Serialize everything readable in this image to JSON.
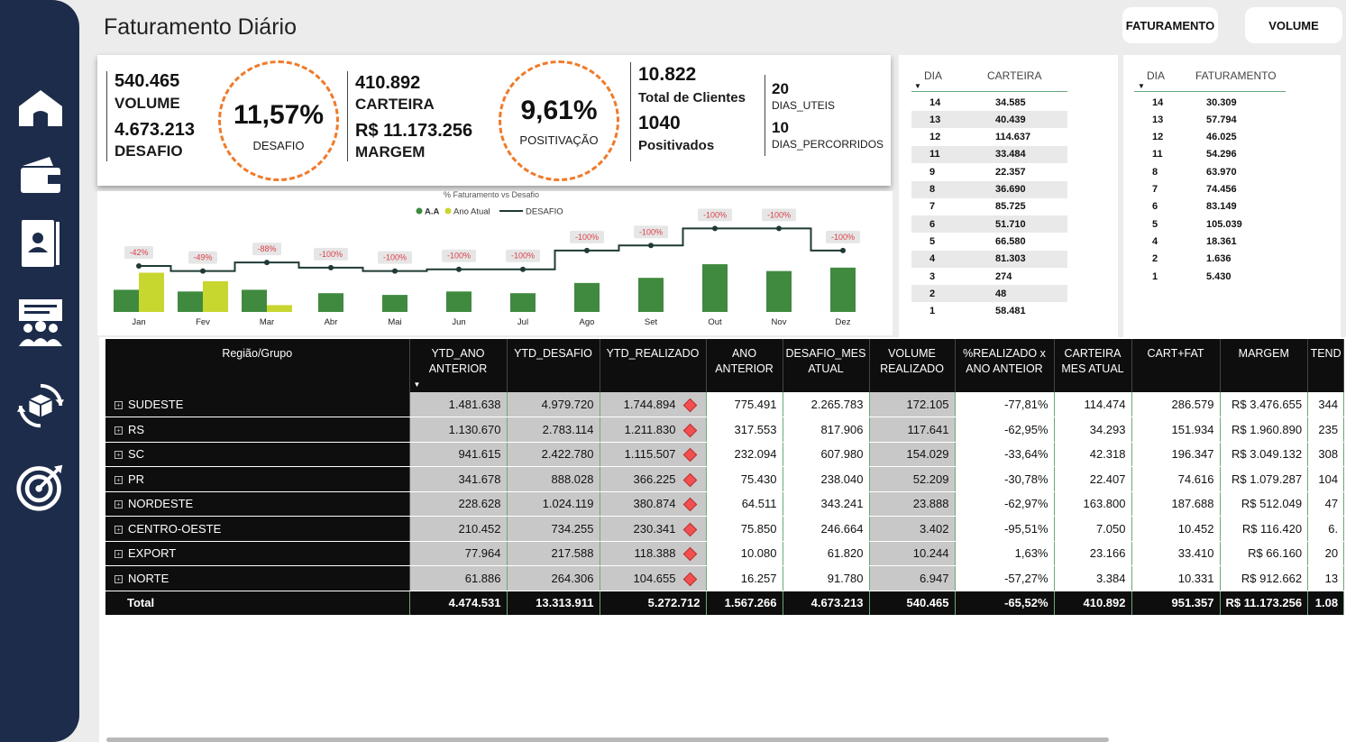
{
  "header": {
    "title": "Faturamento Diário",
    "btn_faturamento": "FATURAMENTO",
    "btn_volume": "VOLUME"
  },
  "sidebar": {
    "items": [
      "home-icon",
      "wallet-icon",
      "contacts-icon",
      "team-presentation-icon",
      "sync-box-icon",
      "target-icon"
    ]
  },
  "kpi": {
    "volume_value": "540.465",
    "volume_label": "VOLUME",
    "desafio_value": "4.673.213",
    "desafio_label": "DESAFIO",
    "desafio_pct": "11,57%",
    "desafio_pct_label": "DESAFIO",
    "carteira_value": "410.892",
    "carteira_label": "CARTEIRA",
    "margem_value": "R$ 11.173.256",
    "margem_label": "MARGEM",
    "positivacao_pct": "9,61%",
    "positivacao_label": "POSITIVAÇÃO",
    "clientes_value": "10.822",
    "clientes_label": "Total de Clientes",
    "positivados_value": "1040",
    "positivados_label": "Positivados",
    "dias_uteis_value": "20",
    "dias_uteis_label": "DIAS_UTEIS",
    "dias_percorridos_value": "10",
    "dias_percorridos_label": "DIAS_PERCORRIDOS"
  },
  "chart_data": {
    "type": "bar",
    "title": "% Faturamento vs Desafio",
    "legend": [
      "A.A",
      "Ano Atual",
      "DESAFIO"
    ],
    "legend_position": "top-center",
    "colors": {
      "aa": "#3f8a3f",
      "atual": "#c8d630",
      "desafio": "#1f3a35"
    },
    "categories": [
      "Jan",
      "Fev",
      "Mar",
      "Abr",
      "Mai",
      "Jun",
      "Jul",
      "Ago",
      "Set",
      "Out",
      "Nov",
      "Dez"
    ],
    "series": [
      {
        "name": "A.A",
        "values": [
          13,
          12,
          13,
          11,
          10,
          12,
          11,
          17,
          20,
          28,
          24,
          26
        ]
      },
      {
        "name": "Ano Atual",
        "values": [
          23,
          18,
          4,
          0,
          0,
          0,
          0,
          0,
          0,
          0,
          0,
          0
        ]
      },
      {
        "name": "DESAFIO",
        "values": [
          27,
          24,
          29,
          26,
          24,
          25,
          25,
          36,
          39,
          49,
          49,
          36
        ]
      }
    ],
    "data_labels": [
      "-42%",
      "-49%",
      "-88%",
      "-100%",
      "-100%",
      "-100%",
      "-100%",
      "-100%",
      "-100%",
      "-100%",
      "-100%",
      "-100%"
    ],
    "ylim": [
      0,
      55
    ],
    "grid": false
  },
  "carteira_table": {
    "col1": "DIA",
    "col2": "CARTEIRA",
    "rows": [
      [
        "14",
        "34.585"
      ],
      [
        "13",
        "40.439"
      ],
      [
        "12",
        "114.637"
      ],
      [
        "11",
        "33.484"
      ],
      [
        "9",
        "22.357"
      ],
      [
        "8",
        "36.690"
      ],
      [
        "7",
        "85.725"
      ],
      [
        "6",
        "51.710"
      ],
      [
        "5",
        "66.580"
      ],
      [
        "4",
        "81.303"
      ],
      [
        "3",
        "274"
      ],
      [
        "2",
        "48"
      ],
      [
        "1",
        "58.481"
      ]
    ]
  },
  "faturamento_table": {
    "col1": "DIA",
    "col2": "FATURAMENTO",
    "rows": [
      [
        "14",
        "30.309"
      ],
      [
        "13",
        "57.794"
      ],
      [
        "12",
        "46.025"
      ],
      [
        "11",
        "54.296"
      ],
      [
        "8",
        "63.970"
      ],
      [
        "7",
        "74.456"
      ],
      [
        "6",
        "83.149"
      ],
      [
        "5",
        "105.039"
      ],
      [
        "4",
        "18.361"
      ],
      [
        "2",
        "1.636"
      ],
      [
        "1",
        "5.430"
      ]
    ]
  },
  "grid": {
    "headers": [
      "Região/Grupo",
      "YTD_ANO ANTERIOR",
      "YTD_DESAFIO",
      "YTD_REALIZADO",
      "ANO ANTERIOR",
      "DESAFIO_MES ATUAL",
      "VOLUME REALIZADO",
      "%REALIZADO x ANO ANTEIOR",
      "CARTEIRA MES ATUAL",
      "CART+FAT",
      "MARGEM",
      "TEND"
    ],
    "rows": [
      [
        "SUDESTE",
        "1.481.638",
        "4.979.720",
        "1.744.894",
        "775.491",
        "2.265.783",
        "172.105",
        "-77,81%",
        "114.474",
        "286.579",
        "R$ 3.476.655",
        "344"
      ],
      [
        "RS",
        "1.130.670",
        "2.783.114",
        "1.211.830",
        "317.553",
        "817.906",
        "117.641",
        "-62,95%",
        "34.293",
        "151.934",
        "R$ 1.960.890",
        "235"
      ],
      [
        "SC",
        "941.615",
        "2.422.780",
        "1.115.507",
        "232.094",
        "607.980",
        "154.029",
        "-33,64%",
        "42.318",
        "196.347",
        "R$ 3.049.132",
        "308"
      ],
      [
        "PR",
        "341.678",
        "888.028",
        "366.225",
        "75.430",
        "238.040",
        "52.209",
        "-30,78%",
        "22.407",
        "74.616",
        "R$ 1.079.287",
        "104"
      ],
      [
        "NORDESTE",
        "228.628",
        "1.024.119",
        "380.874",
        "64.511",
        "343.241",
        "23.888",
        "-62,97%",
        "163.800",
        "187.688",
        "R$ 512.049",
        "47"
      ],
      [
        "CENTRO-OESTE",
        "210.452",
        "734.255",
        "230.341",
        "75.850",
        "246.664",
        "3.402",
        "-95,51%",
        "7.050",
        "10.452",
        "R$ 116.420",
        "6."
      ],
      [
        "EXPORT",
        "77.964",
        "217.588",
        "118.388",
        "10.080",
        "61.820",
        "10.244",
        "1,63%",
        "23.166",
        "33.410",
        "R$ 66.160",
        "20"
      ],
      [
        "NORTE",
        "61.886",
        "264.306",
        "104.655",
        "16.257",
        "91.780",
        "6.947",
        "-57,27%",
        "3.384",
        "10.331",
        "R$ 912.662",
        "13"
      ]
    ],
    "total": [
      "Total",
      "4.474.531",
      "13.313.911",
      "5.272.712",
      "1.567.266",
      "4.673.213",
      "540.465",
      "-65,52%",
      "410.892",
      "951.357",
      "R$ 11.173.256",
      "1.08"
    ]
  }
}
